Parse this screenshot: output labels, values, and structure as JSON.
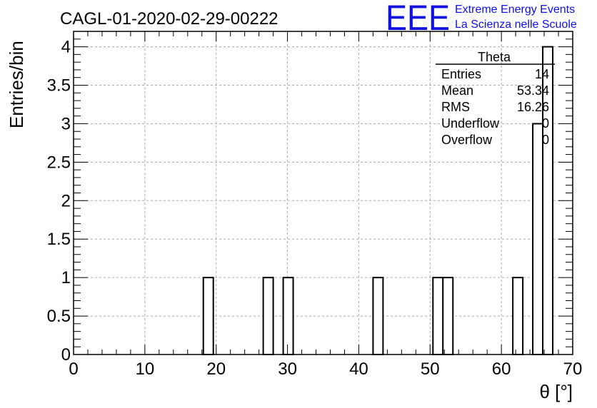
{
  "chart_data": {
    "type": "bar",
    "title": "CAGL-01-2020-02-29-00222",
    "xlabel": "θ [°]",
    "ylabel": "Entries/bin",
    "xlim": [
      0,
      70
    ],
    "ylim": [
      0,
      4.2
    ],
    "bin_width": 1.4,
    "bins": [
      {
        "x0": 18.2,
        "x1": 19.6,
        "value": 1
      },
      {
        "x0": 26.6,
        "x1": 28.0,
        "value": 1
      },
      {
        "x0": 29.4,
        "x1": 30.8,
        "value": 1
      },
      {
        "x0": 42.0,
        "x1": 43.4,
        "value": 1
      },
      {
        "x0": 50.4,
        "x1": 51.8,
        "value": 1
      },
      {
        "x0": 51.8,
        "x1": 53.2,
        "value": 1
      },
      {
        "x0": 61.6,
        "x1": 63.0,
        "value": 1
      },
      {
        "x0": 64.4,
        "x1": 65.8,
        "value": 3
      },
      {
        "x0": 65.8,
        "x1": 67.2,
        "value": 4
      }
    ],
    "x_ticks": [
      "0",
      "10",
      "20",
      "30",
      "40",
      "50",
      "60",
      "70"
    ],
    "y_ticks": [
      "0",
      "0.5",
      "1",
      "1.5",
      "2",
      "2.5",
      "3",
      "3.5",
      "4"
    ],
    "grid": true,
    "stats_box": {
      "title": "Theta",
      "rows": [
        {
          "label": "Entries",
          "value": "14"
        },
        {
          "label": "Mean",
          "value": "53.34"
        },
        {
          "label": "RMS",
          "value": "16.26"
        },
        {
          "label": "Underflow",
          "value": "0"
        },
        {
          "label": "Overflow",
          "value": "0"
        }
      ]
    }
  },
  "logo": {
    "mark": "EEE",
    "line1": "Extreme Energy Events",
    "line2": "La Scienza nelle Scuole",
    "color": "#1010e0"
  }
}
